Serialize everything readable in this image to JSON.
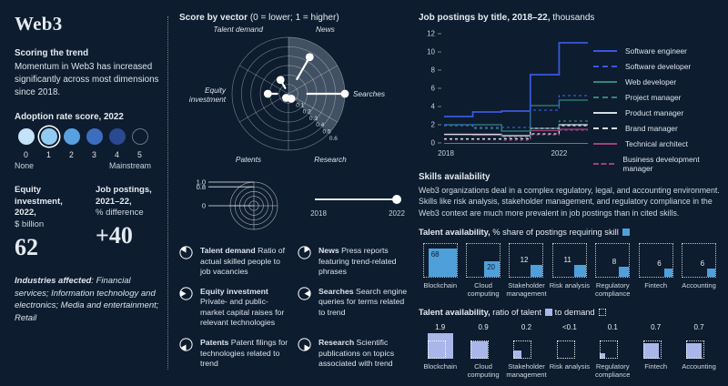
{
  "left": {
    "title": "Web3",
    "scoring_heading": "Scoring the trend",
    "scoring_text": "Momentum in Web3 has increased significantly across most dimensions since 2018.",
    "adoption": {
      "heading": "Adoption rate score, 2022",
      "selected": 1,
      "scale": [
        {
          "label": "0",
          "color": "#c4e3f8"
        },
        {
          "label": "1",
          "color": "#92cbf1"
        },
        {
          "label": "2",
          "color": "#57a1e1"
        },
        {
          "label": "3",
          "color": "#3b6ec1"
        },
        {
          "label": "4",
          "color": "#294a90"
        },
        {
          "label": "5",
          "color": "outline"
        }
      ],
      "min_label": "None",
      "max_label": "Mainstream"
    },
    "stats": [
      {
        "title": "Equity investment, 2022,",
        "unit": "$ billion",
        "value": "62"
      },
      {
        "title": "Job postings, 2021–22,",
        "unit": "% difference",
        "value": "+40"
      }
    ],
    "industries_label": "Industries affected",
    "industries_rest": ": Financial services; Information technology and electronics; Media and entertainment; Retail"
  },
  "vector": {
    "title_bold": "Score by vector",
    "title_rest": " (0 = lower; 1 = higher)",
    "legend_rings": [
      {
        "label": "1.0",
        "frac": 1
      },
      {
        "label": "0.8",
        "frac": 0.8
      },
      {
        "label": "0",
        "frac": 0
      }
    ],
    "timeline": {
      "start": "2018",
      "end": "2022"
    },
    "definitions": [
      {
        "term": "Talent demand",
        "desc": "Ratio of actual skilled people to job vacancies",
        "wedge_start": 300
      },
      {
        "term": "News",
        "desc": "Press reports featuring trend-related phrases",
        "wedge_start": 0
      },
      {
        "term": "Equity investment",
        "desc": "Private- and public-market capital raises for relevant technologies",
        "wedge_start": 240
      },
      {
        "term": "Searches",
        "desc": "Search engine queries for terms related to trend",
        "wedge_start": 60
      },
      {
        "term": "Patents",
        "desc": "Patent filings for technologies related to trend",
        "wedge_start": 180
      },
      {
        "term": "Research",
        "desc": "Scientific publications on topics associated with trend",
        "wedge_start": 120
      }
    ]
  },
  "jobs": {
    "title_bold": "Job postings by title, 2018–22,",
    "title_rest": " thousands"
  },
  "skills": {
    "heading": "Skills availability",
    "text": "Web3 organizations deal in a complex regulatory, legal, and accounting environment. Skills like risk analysis, stakeholder management, and regulatory compliance in the Web3 context are much more prevalent in job postings than in cited skills.",
    "share_title_bold": "Talent availability,",
    "share_title_rest": " % share of postings requiring skill",
    "ratio_title_bold": "Talent availability,",
    "ratio_title_rest1": " ratio of talent",
    "ratio_title_rest2": " to demand"
  },
  "chart_data": [
    {
      "type": "radar",
      "title": "Score by vector (0 = lower; 1 = higher)",
      "axes": [
        {
          "label": "Talent demand",
          "angle": 330
        },
        {
          "label": "News",
          "angle": 30
        },
        {
          "label": "Searches",
          "angle": 90
        },
        {
          "label": "Research",
          "angle": 150
        },
        {
          "label": "Patents",
          "angle": 210
        },
        {
          "label": "Equity investment",
          "angle": 270
        }
      ],
      "rings": [
        0.1,
        0.2,
        0.3,
        0.4,
        0.5,
        0.6
      ],
      "shaded_sector_deg": [
        0,
        135
      ],
      "series": [
        {
          "name": "2018",
          "values": [
            0.07,
            0.18,
            0.2,
            0.03,
            0.03,
            0.12
          ]
        },
        {
          "name": "2022",
          "values": [
            0.17,
            0.45,
            0.6,
            0.06,
            0.05,
            0.22
          ]
        }
      ]
    },
    {
      "type": "line",
      "variant": "step",
      "title": "Job postings by title, 2018–22, thousands",
      "x": [
        2018,
        2019,
        2020,
        2021,
        2022
      ],
      "xticks": [
        "2018",
        "2022"
      ],
      "ylim": [
        0,
        12
      ],
      "yticks": [
        0,
        2,
        4,
        6,
        8,
        10,
        12
      ],
      "series": [
        {
          "name": "Software engineer",
          "color": "#3a57dd",
          "dash": false,
          "values": [
            2.9,
            3.4,
            3.5,
            7.5,
            11.0
          ]
        },
        {
          "name": "Software developer",
          "color": "#3a57dd",
          "dash": true,
          "values": [
            2.0,
            1.7,
            1.7,
            3.6,
            5.2
          ]
        },
        {
          "name": "Web developer",
          "color": "#31887b",
          "dash": false,
          "values": [
            2.0,
            2.0,
            1.3,
            4.1,
            4.7
          ]
        },
        {
          "name": "Project manager",
          "color": "#31887b",
          "dash": true,
          "values": [
            1.9,
            1.6,
            0.6,
            1.6,
            2.4
          ]
        },
        {
          "name": "Product manager",
          "color": "#d6dbe2",
          "dash": false,
          "values": [
            0.95,
            0.95,
            0.8,
            1.6,
            2.0
          ]
        },
        {
          "name": "Brand manager",
          "color": "#d6dbe2",
          "dash": true,
          "values": [
            0.45,
            0.45,
            0.45,
            1.0,
            1.9
          ]
        },
        {
          "name": "Technical architect",
          "color": "#a23e7e",
          "dash": false,
          "values": [
            0.9,
            0.85,
            0.75,
            1.35,
            1.5
          ]
        },
        {
          "name": "Business development manager",
          "color": "#a23e7e",
          "dash": true,
          "values": [
            0.35,
            0.35,
            0.3,
            0.9,
            1.4
          ]
        }
      ]
    },
    {
      "type": "bar",
      "variant": "square-share",
      "title": "Talent availability, % share of postings requiring skill",
      "categories": [
        "Blockchain",
        "Cloud computing",
        "Stakeholder management",
        "Risk analysis",
        "Regulatory compliance",
        "Fintech",
        "Accounting"
      ],
      "values": [
        68,
        20,
        12,
        11,
        8,
        6,
        6
      ],
      "fill": "#4fa0da"
    },
    {
      "type": "bar",
      "variant": "square-ratio",
      "title": "Talent availability, ratio of talent to demand",
      "categories": [
        "Blockchain",
        "Cloud computing",
        "Stakeholder management",
        "Risk analysis",
        "Regulatory compliance",
        "Fintech",
        "Accounting"
      ],
      "labels": [
        "1.9",
        "0.9",
        "0.2",
        "<0.1",
        "0.1",
        "0.7",
        "0.7"
      ],
      "values": [
        1.9,
        0.9,
        0.2,
        0,
        0.1,
        0.7,
        0.7
      ],
      "fill": "#a9b6ea"
    }
  ]
}
